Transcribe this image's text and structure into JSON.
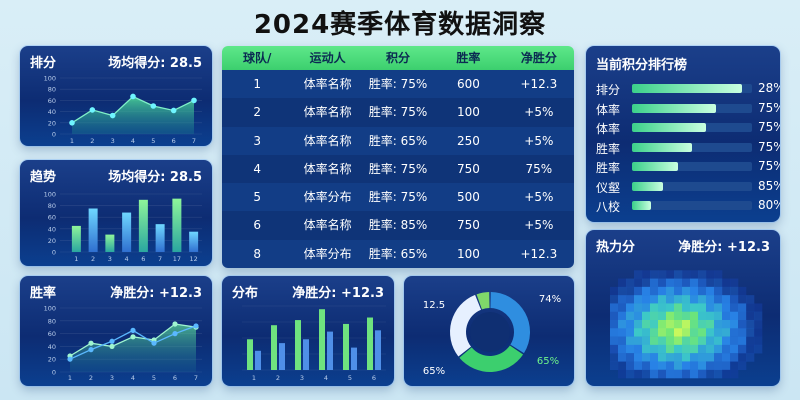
{
  "title": "2024赛季体育数据洞察",
  "panels": {
    "score": {
      "label": "排分",
      "stat": "场均得分: 28.5"
    },
    "trend": {
      "label": "趋势",
      "stat": "场均得分: 28.5"
    },
    "winrate": {
      "label": "胜率",
      "stat": "净胜分: +12.3"
    },
    "distribution": {
      "label": "分布",
      "stat": "净胜分: +12.3"
    },
    "ranking": {
      "label": "当前积分排行榜"
    },
    "heatmap": {
      "label": "热力分",
      "stat": "净胜分: +12.3"
    }
  },
  "table": {
    "headers": [
      "球队/",
      "运动人",
      "积分",
      "胜率",
      "净胜分"
    ],
    "rows": [
      [
        "1",
        "体率名称",
        "胜率: 75%",
        "600",
        "+12.3"
      ],
      [
        "2",
        "体率名称",
        "胜率: 75%",
        "100",
        "+5%"
      ],
      [
        "3",
        "体率名称",
        "胜率: 65%",
        "250",
        "+5%"
      ],
      [
        "4",
        "体率名称",
        "胜率: 75%",
        "750",
        "75%"
      ],
      [
        "5",
        "体率分布",
        "胜率: 75%",
        "500",
        "+5%"
      ],
      [
        "6",
        "体率名称",
        "胜率: 85%",
        "750",
        "+5%"
      ],
      [
        "8",
        "体率分布",
        "胜率: 65%",
        "100",
        "+12.3"
      ]
    ]
  },
  "ranking": [
    {
      "label": "排分",
      "value": "28%",
      "fill": 0.92
    },
    {
      "label": "体率",
      "value": "75%",
      "fill": 0.7
    },
    {
      "label": "体率",
      "value": "75%",
      "fill": 0.62
    },
    {
      "label": "胜率",
      "value": "75%",
      "fill": 0.5
    },
    {
      "label": "胜率",
      "value": "75%",
      "fill": 0.38
    },
    {
      "label": "仪壑",
      "value": "85%",
      "fill": 0.26
    },
    {
      "label": "八校",
      "value": "80%",
      "fill": 0.16
    }
  ],
  "chart_data": [
    {
      "type": "area",
      "name": "score",
      "x": [
        "1",
        "2",
        "3",
        "4",
        "5",
        "6",
        "7"
      ],
      "values": [
        20,
        43,
        33,
        67,
        50,
        42,
        60
      ],
      "ylim": [
        0,
        100
      ],
      "yticks": [
        0,
        20,
        40,
        60,
        80,
        100
      ]
    },
    {
      "type": "bar",
      "name": "trend",
      "categories": [
        "1",
        "2",
        "3",
        "4",
        "6",
        "7",
        "17",
        "12"
      ],
      "values": [
        45,
        75,
        30,
        68,
        90,
        48,
        92,
        35
      ],
      "ylim": [
        0,
        100
      ],
      "yticks": [
        0,
        20,
        40,
        60,
        80,
        100
      ]
    },
    {
      "type": "line",
      "name": "winrate",
      "x": [
        "1",
        "2",
        "3",
        "4",
        "5",
        "6",
        "7"
      ],
      "series": [
        {
          "values": [
            25,
            45,
            40,
            55,
            50,
            75,
            70
          ]
        },
        {
          "values": [
            20,
            35,
            48,
            65,
            45,
            60,
            72
          ]
        }
      ],
      "ylim": [
        0,
        100
      ],
      "yticks": [
        0,
        20,
        40,
        60,
        80,
        100
      ]
    },
    {
      "type": "bar",
      "name": "distribution",
      "categories": [
        "1",
        "2",
        "3",
        "4",
        "5",
        "6"
      ],
      "series": [
        {
          "values": [
            48,
            70,
            78,
            95,
            72,
            82
          ]
        },
        {
          "values": [
            30,
            42,
            48,
            60,
            35,
            62
          ]
        }
      ],
      "ylim": [
        0,
        100
      ]
    },
    {
      "type": "pie",
      "name": "donut",
      "values": [
        74,
        65,
        65,
        12.5
      ],
      "labels": [
        "74%",
        "65%",
        "65%",
        "12.5"
      ],
      "colors": [
        "#2f8ee0",
        "#3ccf6e",
        "#e6f0ff",
        "#7fd86a"
      ]
    },
    {
      "type": "heatmap",
      "name": "heat",
      "rows": 14,
      "cols": 20
    }
  ]
}
